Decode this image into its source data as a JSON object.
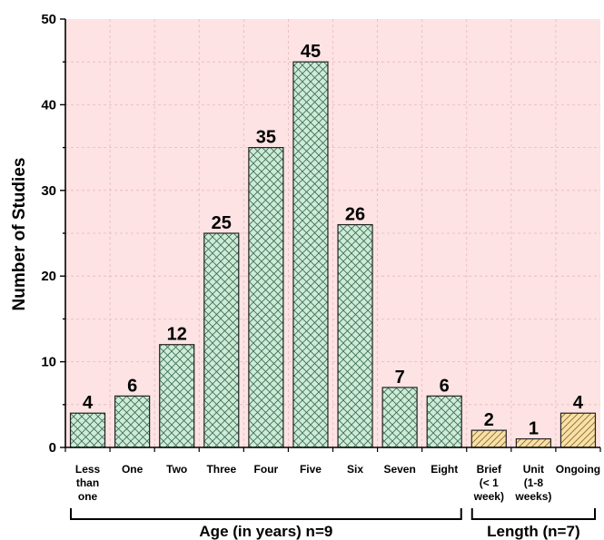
{
  "chart_data": {
    "type": "bar",
    "title": "",
    "xlabel": "",
    "ylabel": "Number of Studies",
    "ylim": [
      0,
      50
    ],
    "yticks": [
      "0",
      "10",
      "20",
      "30",
      "40",
      "50"
    ],
    "grid": true,
    "colors": {
      "plot_background": "#fde3e3",
      "grid": "#e8b9b9",
      "age_fill": "#cdebd9",
      "age_hatch": "#3b6b4c",
      "length_fill": "#f9e0a8",
      "length_hatch": "#8a6d2a",
      "bar_stroke": "#222222"
    },
    "categories": [
      [
        "Less",
        "than",
        "one"
      ],
      [
        "One"
      ],
      [
        "Two"
      ],
      [
        "Three"
      ],
      [
        "Four"
      ],
      [
        "Five"
      ],
      [
        "Six"
      ],
      [
        "Seven"
      ],
      [
        "Eight"
      ],
      [
        "Brief",
        "(< 1",
        "week)"
      ],
      [
        "Unit",
        "(1-8",
        "weeks)"
      ],
      [
        "Ongoing"
      ]
    ],
    "values": [
      4,
      6,
      12,
      25,
      35,
      45,
      26,
      7,
      6,
      2,
      1,
      4
    ],
    "groups": [
      {
        "label": "Age (in years) n=9",
        "category_indices": [
          0,
          1,
          2,
          3,
          4,
          5,
          6,
          7,
          8
        ],
        "pattern": "crosshatch"
      },
      {
        "label": "Length (n=7)",
        "category_indices": [
          9,
          10,
          11
        ],
        "pattern": "diagonal"
      }
    ]
  }
}
